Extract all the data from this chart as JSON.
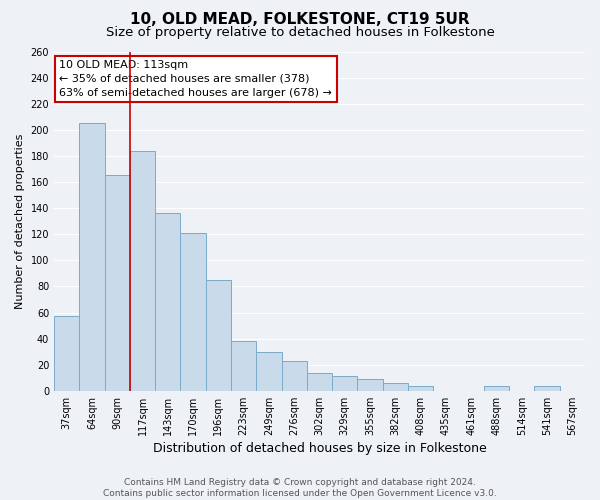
{
  "title": "10, OLD MEAD, FOLKESTONE, CT19 5UR",
  "subtitle": "Size of property relative to detached houses in Folkestone",
  "xlabel": "Distribution of detached houses by size in Folkestone",
  "ylabel": "Number of detached properties",
  "categories": [
    "37sqm",
    "64sqm",
    "90sqm",
    "117sqm",
    "143sqm",
    "170sqm",
    "196sqm",
    "223sqm",
    "249sqm",
    "276sqm",
    "302sqm",
    "329sqm",
    "355sqm",
    "382sqm",
    "408sqm",
    "435sqm",
    "461sqm",
    "488sqm",
    "514sqm",
    "541sqm",
    "567sqm"
  ],
  "values": [
    57,
    205,
    165,
    184,
    136,
    121,
    85,
    38,
    30,
    23,
    14,
    11,
    9,
    6,
    4,
    0,
    0,
    4,
    0,
    4,
    0
  ],
  "bar_color": "#c9daea",
  "bar_edge_color": "#7baac8",
  "property_line_x": 2.5,
  "property_line_color": "#cc0000",
  "annotation_box_line1": "10 OLD MEAD: 113sqm",
  "annotation_box_line2": "← 35% of detached houses are smaller (378)",
  "annotation_box_line3": "63% of semi-detached houses are larger (678) →",
  "annotation_box_color": "#ffffff",
  "annotation_box_edge_color": "#cc0000",
  "ylim": [
    0,
    260
  ],
  "yticks": [
    0,
    20,
    40,
    60,
    80,
    100,
    120,
    140,
    160,
    180,
    200,
    220,
    240,
    260
  ],
  "background_color": "#eef2f7",
  "grid_color": "#ffffff",
  "footer_text": "Contains HM Land Registry data © Crown copyright and database right 2024.\nContains public sector information licensed under the Open Government Licence v3.0.",
  "title_fontsize": 11,
  "subtitle_fontsize": 9.5,
  "xlabel_fontsize": 9,
  "ylabel_fontsize": 8,
  "tick_fontsize": 7,
  "annotation_fontsize": 8,
  "footer_fontsize": 6.5
}
